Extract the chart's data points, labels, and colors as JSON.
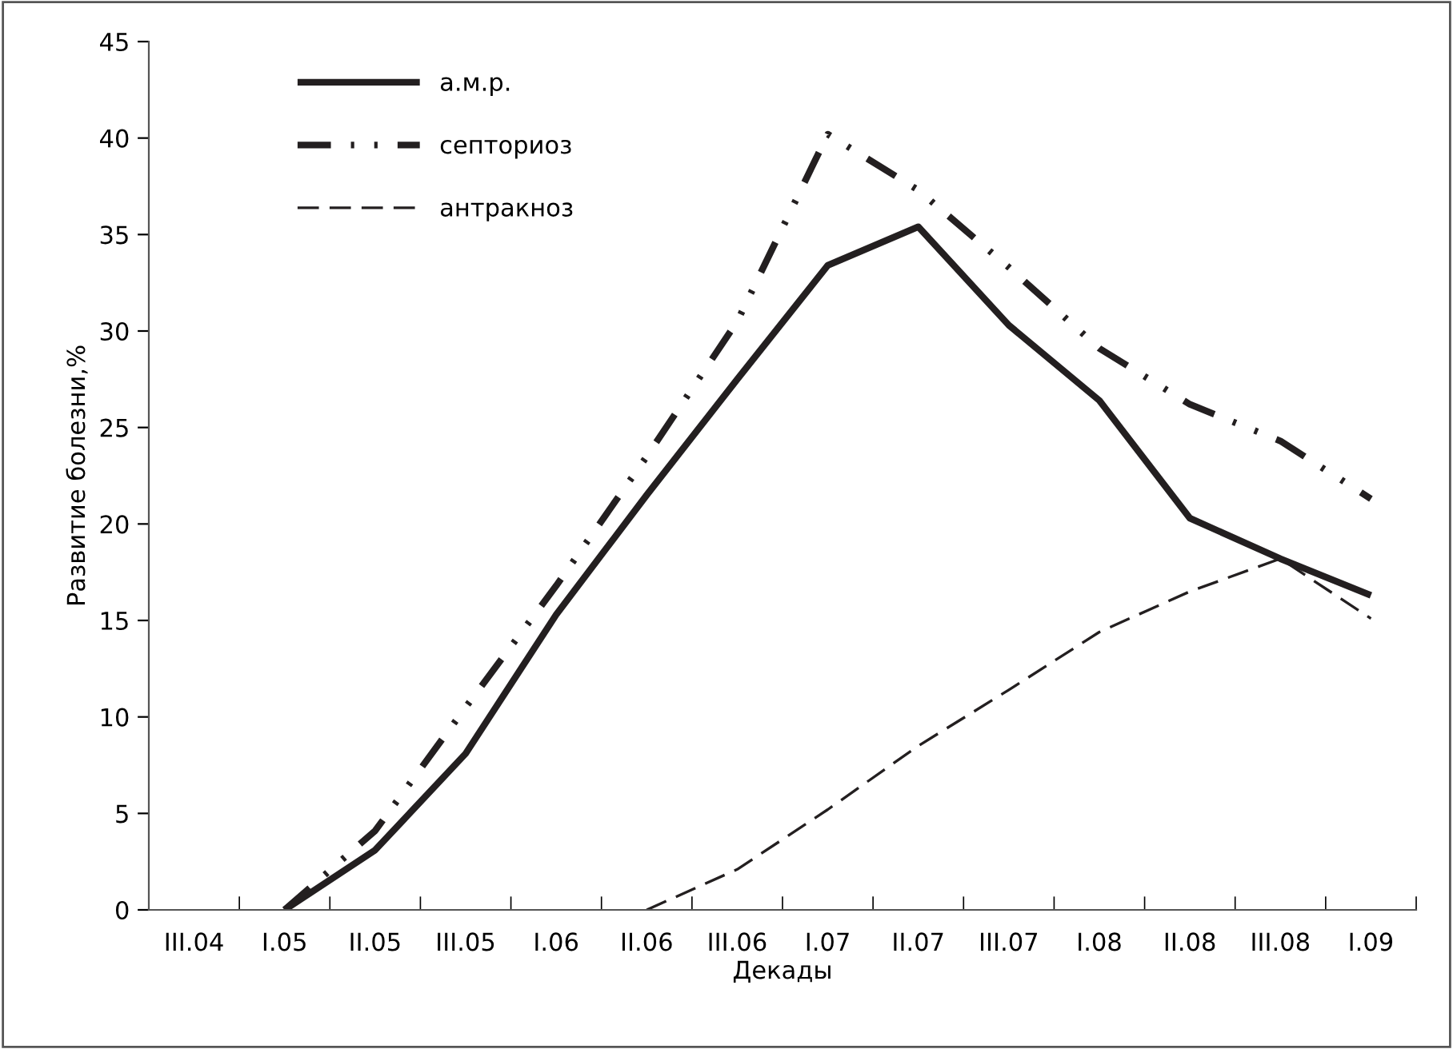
{
  "chart_data": {
    "type": "line",
    "xlabel": "Декады",
    "ylabel": "Развитие болезни,%",
    "categories": [
      "III.04",
      "I.05",
      "II.05",
      "III.05",
      "I.06",
      "II.06",
      "III.06",
      "I.07",
      "II.07",
      "III.07",
      "I.08",
      "II.08",
      "III.08",
      "I.09"
    ],
    "series": [
      {
        "name": "а.м.р.",
        "color": "#231f20",
        "line_style": "solid",
        "values": [
          null,
          0,
          3.1,
          8.1,
          15.3,
          21.5,
          27.5,
          33.4,
          35.4,
          30.3,
          26.4,
          20.3,
          18.2,
          16.3
        ]
      },
      {
        "name": "септориоз",
        "color": "#231f20",
        "line_style": "dashdot",
        "values": [
          null,
          0,
          4.1,
          10.5,
          16.8,
          23.5,
          30.5,
          40.2,
          37.3,
          33.3,
          29.1,
          26.2,
          24.3,
          21.3
        ]
      },
      {
        "name": "антракноз",
        "color": "#231f20",
        "line_style": "dashed",
        "values": [
          null,
          null,
          null,
          null,
          null,
          0,
          2.1,
          5.2,
          8.5,
          11.4,
          14.4,
          16.5,
          18.2,
          15.1
        ]
      }
    ],
    "ylim": [
      0,
      45
    ],
    "yticks": [
      0,
      5,
      10,
      15,
      20,
      25,
      30,
      35,
      40,
      45
    ],
    "grid": false,
    "legend": "top left",
    "marker": "none"
  }
}
